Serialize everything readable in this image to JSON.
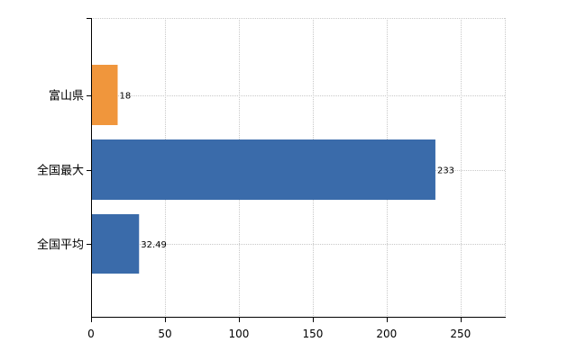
{
  "chart_data": {
    "type": "bar",
    "orientation": "horizontal",
    "categories": [
      "富山県",
      "全国最大",
      "全国平均"
    ],
    "values": [
      18,
      233,
      32.49
    ],
    "value_labels": [
      "18",
      "233",
      "32.49"
    ],
    "bar_colors": [
      "#F0963C",
      "#3A6BAA",
      "#3A6BAA"
    ],
    "xlim": [
      0,
      280
    ],
    "x_ticks": [
      0,
      50,
      100,
      150,
      200,
      250
    ],
    "x_tick_labels": [
      "0",
      "50",
      "100",
      "150",
      "200",
      "250"
    ],
    "grid": true,
    "grid_style": "dashed",
    "title": "",
    "xlabel": "",
    "ylabel": ""
  }
}
